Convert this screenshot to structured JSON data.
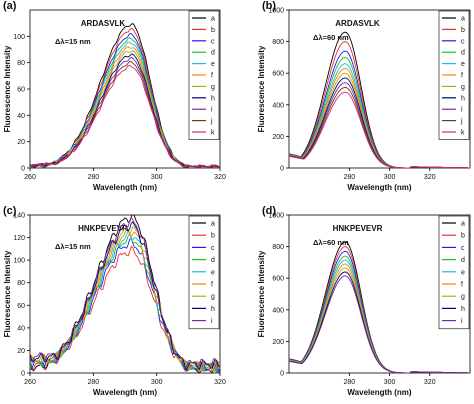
{
  "chart_data": [
    {
      "type": "line",
      "panel_label": "(a)",
      "title": "ARDASVLK",
      "annotation": "Δλ=15 nm",
      "xlabel": "Wavelength (nm)",
      "ylabel": "Fluorescence Intensity",
      "xlim": [
        260,
        320
      ],
      "ylim": [
        0,
        120
      ],
      "xticks": [
        "260",
        "280",
        "300",
        "320"
      ],
      "yticks": [
        "0",
        "20",
        "40",
        "60",
        "80",
        "100"
      ],
      "legend_position": "top-right",
      "grid": false,
      "series": [
        {
          "name": "a",
          "color": "#000000",
          "peak": 109
        },
        {
          "name": "b",
          "color": "#e8322b",
          "peak": 105
        },
        {
          "name": "c",
          "color": "#1c1cff",
          "peak": 101
        },
        {
          "name": "d",
          "color": "#1fbf1f",
          "peak": 98
        },
        {
          "name": "e",
          "color": "#1cb8e8",
          "peak": 95
        },
        {
          "name": "f",
          "color": "#ff7f00",
          "peak": 92
        },
        {
          "name": "g",
          "color": "#b0b000",
          "peak": 89
        },
        {
          "name": "h",
          "color": "#000080",
          "peak": 86
        },
        {
          "name": "i",
          "color": "#7b2a9b",
          "peak": 83
        },
        {
          "name": "j",
          "color": "#6b3a1a",
          "peak": 80
        },
        {
          "name": "k",
          "color": "#e02080",
          "peak": 77
        }
      ]
    },
    {
      "type": "line",
      "panel_label": "(b)",
      "title": "ARDASVLK",
      "annotation": "Δλ=60 nm",
      "xlabel": "Wavelength (nm)",
      "ylabel": "Fluorescence Intensity",
      "xlim": [
        250,
        340
      ],
      "ylim": [
        0,
        1000
      ],
      "xticks": [
        "280",
        "300",
        "320"
      ],
      "yticks": [
        "0",
        "200",
        "400",
        "600",
        "800",
        "1000"
      ],
      "legend_position": "top-right",
      "grid": false,
      "series": [
        {
          "name": "a",
          "color": "#000000",
          "peak": 860
        },
        {
          "name": "b",
          "color": "#e8322b",
          "peak": 800
        },
        {
          "name": "c",
          "color": "#1c1cff",
          "peak": 740
        },
        {
          "name": "d",
          "color": "#1fbf1f",
          "peak": 700
        },
        {
          "name": "e",
          "color": "#1cb8e8",
          "peak": 660
        },
        {
          "name": "f",
          "color": "#ff7f00",
          "peak": 630
        },
        {
          "name": "g",
          "color": "#b0b000",
          "peak": 600
        },
        {
          "name": "h",
          "color": "#000080",
          "peak": 570
        },
        {
          "name": "i",
          "color": "#7b2a9b",
          "peak": 540
        },
        {
          "name": "j",
          "color": "#6b3a1a",
          "peak": 510
        },
        {
          "name": "k",
          "color": "#e02080",
          "peak": 480
        }
      ]
    },
    {
      "type": "line",
      "panel_label": "(c)",
      "title": "HNKPEVEVR",
      "annotation": "Δλ=15 nm",
      "xlabel": "Wavelength (nm)",
      "ylabel": "Fluorescence Intensity",
      "xlim": [
        260,
        320
      ],
      "ylim": [
        0,
        140
      ],
      "xticks": [
        "260",
        "280",
        "300",
        "320"
      ],
      "yticks": [
        "0",
        "20",
        "40",
        "60",
        "80",
        "100",
        "120",
        "140"
      ],
      "legend_position": "top-right",
      "grid": false,
      "series": [
        {
          "name": "a",
          "color": "#000000",
          "peak": 138
        },
        {
          "name": "b",
          "color": "#e8322b",
          "peak": 108
        },
        {
          "name": "c",
          "color": "#1c1cff",
          "peak": 115
        },
        {
          "name": "d",
          "color": "#1fbf1f",
          "peak": 119
        },
        {
          "name": "e",
          "color": "#1cb8e8",
          "peak": 122
        },
        {
          "name": "f",
          "color": "#ff7f00",
          "peak": 125
        },
        {
          "name": "g",
          "color": "#b0b000",
          "peak": 128
        },
        {
          "name": "h",
          "color": "#000080",
          "peak": 131
        },
        {
          "name": "i",
          "color": "#7b2a9b",
          "peak": 134
        }
      ]
    },
    {
      "type": "line",
      "panel_label": "(d)",
      "title": "HNKPEVEVR",
      "annotation": "Δλ=60 nm",
      "xlabel": "Wavelength (nm)",
      "ylabel": "Fluorescence Intensity",
      "xlim": [
        250,
        340
      ],
      "ylim": [
        0,
        1000
      ],
      "xticks": [
        "280",
        "300",
        "320"
      ],
      "yticks": [
        "0",
        "200",
        "400",
        "600",
        "800",
        "1000"
      ],
      "legend_position": "top-right",
      "grid": false,
      "series": [
        {
          "name": "a",
          "color": "#000000",
          "peak": 830
        },
        {
          "name": "b",
          "color": "#e8322b",
          "peak": 800
        },
        {
          "name": "c",
          "color": "#1c1cff",
          "peak": 770
        },
        {
          "name": "d",
          "color": "#1fbf1f",
          "peak": 740
        },
        {
          "name": "e",
          "color": "#1cb8e8",
          "peak": 715
        },
        {
          "name": "f",
          "color": "#ff7f00",
          "peak": 690
        },
        {
          "name": "g",
          "color": "#b0b000",
          "peak": 665
        },
        {
          "name": "h",
          "color": "#000080",
          "peak": 640
        },
        {
          "name": "i",
          "color": "#7b2a9b",
          "peak": 615
        }
      ]
    }
  ]
}
